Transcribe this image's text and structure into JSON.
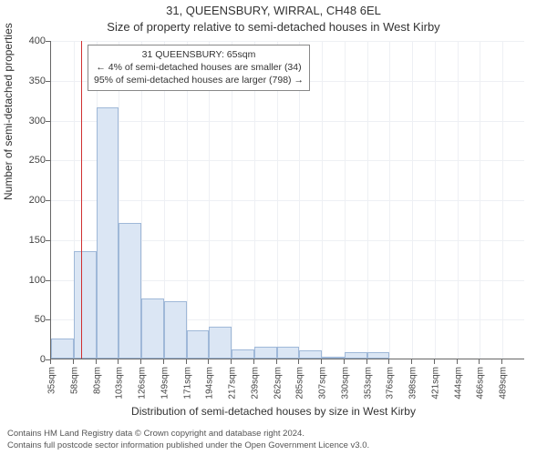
{
  "title_line1": "31, QUEENSBURY, WIRRAL, CH48 6EL",
  "title_line2": "Size of property relative to semi-detached houses in West Kirby",
  "ylabel": "Number of semi-detached properties",
  "xlabel": "Distribution of semi-detached houses by size in West Kirby",
  "footer_line1": "Contains HM Land Registry data © Crown copyright and database right 2024.",
  "footer_line2": "Contains full postcode sector information published under the Open Government Licence v3.0.",
  "chart": {
    "type": "histogram",
    "background_color": "#ffffff",
    "grid_color": "#eef0f4",
    "axis_color": "#666666",
    "bar_fill": "#dbe6f4",
    "bar_border": "#9fb8d8",
    "marker_color": "#d03030",
    "ylim": [
      0,
      400
    ],
    "ytick_step": 50,
    "x_start": 35,
    "x_step": 22.67,
    "x_count": 21,
    "x_unit": "sqm",
    "xtick_labels": [
      "35sqm",
      "58sqm",
      "80sqm",
      "103sqm",
      "126sqm",
      "149sqm",
      "171sqm",
      "194sqm",
      "217sqm",
      "239sqm",
      "262sqm",
      "285sqm",
      "307sqm",
      "330sqm",
      "353sqm",
      "376sqm",
      "398sqm",
      "421sqm",
      "444sqm",
      "466sqm",
      "489sqm"
    ],
    "values": [
      25,
      135,
      315,
      170,
      75,
      72,
      35,
      40,
      12,
      15,
      15,
      10,
      2,
      8,
      8,
      0,
      0,
      0,
      0,
      0,
      0
    ],
    "marker_value": 65,
    "label_fontsize": 11,
    "title_fontsize": 13
  },
  "info_box": {
    "line1": "31 QUEENSBURY: 65sqm",
    "line2": "← 4% of semi-detached houses are smaller (34)",
    "line3": "95% of semi-detached houses are larger (798) →"
  }
}
